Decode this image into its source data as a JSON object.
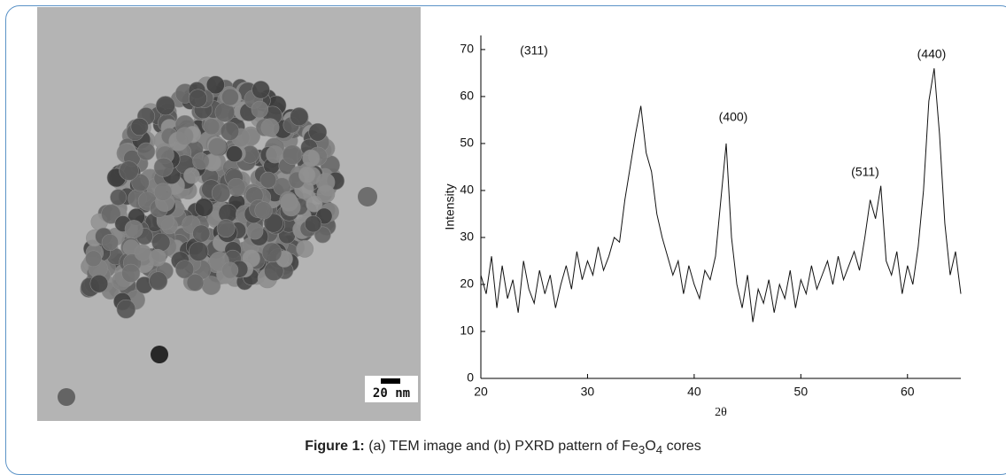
{
  "figure": {
    "scale_bar": "20 nm",
    "caption": {
      "label": "Figure 1:",
      "text": "(a) TEM image and (b) PXRD pattern of Fe",
      "sub1": "3",
      "mid": "O",
      "sub2": "4",
      "end": " cores"
    }
  },
  "chart_data": {
    "type": "line",
    "x_label": "2θ",
    "y_label": "Intensity",
    "annotations": [
      "(311)",
      "(400)",
      "(511)",
      "(440)"
    ],
    "xlim": [
      20,
      65
    ],
    "ylim": [
      0,
      73
    ],
    "xticks": [
      20,
      30,
      40,
      50,
      60
    ],
    "yticks": [
      0,
      10,
      20,
      30,
      40,
      50,
      60,
      70
    ],
    "color": "#111111",
    "x": [
      20,
      20.5,
      21,
      21.5,
      22,
      22.5,
      23,
      23.5,
      24,
      24.5,
      25,
      25.5,
      26,
      26.5,
      27,
      27.5,
      28,
      28.5,
      29,
      29.5,
      30,
      30.5,
      31,
      31.5,
      32,
      32.5,
      33,
      33.5,
      34,
      34.5,
      35,
      35.5,
      36,
      36.5,
      37,
      37.5,
      38,
      38.5,
      39,
      39.5,
      40,
      40.5,
      41,
      41.5,
      42,
      42.5,
      43,
      43.5,
      44,
      44.5,
      45,
      45.5,
      46,
      46.5,
      47,
      47.5,
      48,
      48.5,
      49,
      49.5,
      50,
      50.5,
      51,
      51.5,
      52,
      52.5,
      53,
      53.5,
      54,
      54.5,
      55,
      55.5,
      56,
      56.5,
      57,
      57.5,
      58,
      58.5,
      59,
      59.5,
      60,
      60.5,
      61,
      61.5,
      62,
      62.5,
      63,
      63.5,
      64,
      64.5,
      65
    ],
    "values": [
      22,
      18,
      26,
      15,
      24,
      17,
      21,
      14,
      25,
      19,
      16,
      23,
      18,
      22,
      15,
      20,
      24,
      19,
      27,
      21,
      25,
      22,
      28,
      23,
      26,
      30,
      29,
      38,
      45,
      52,
      58,
      48,
      44,
      35,
      30,
      26,
      22,
      25,
      18,
      24,
      20,
      17,
      23,
      21,
      26,
      38,
      50,
      30,
      20,
      15,
      22,
      12,
      19,
      16,
      21,
      14,
      20,
      17,
      23,
      15,
      21,
      18,
      24,
      19,
      22,
      25,
      20,
      26,
      21,
      24,
      27,
      23,
      30,
      38,
      34,
      41,
      25,
      22,
      27,
      18,
      24,
      20,
      28,
      40,
      59,
      66,
      52,
      33,
      22,
      27,
      18
    ]
  }
}
